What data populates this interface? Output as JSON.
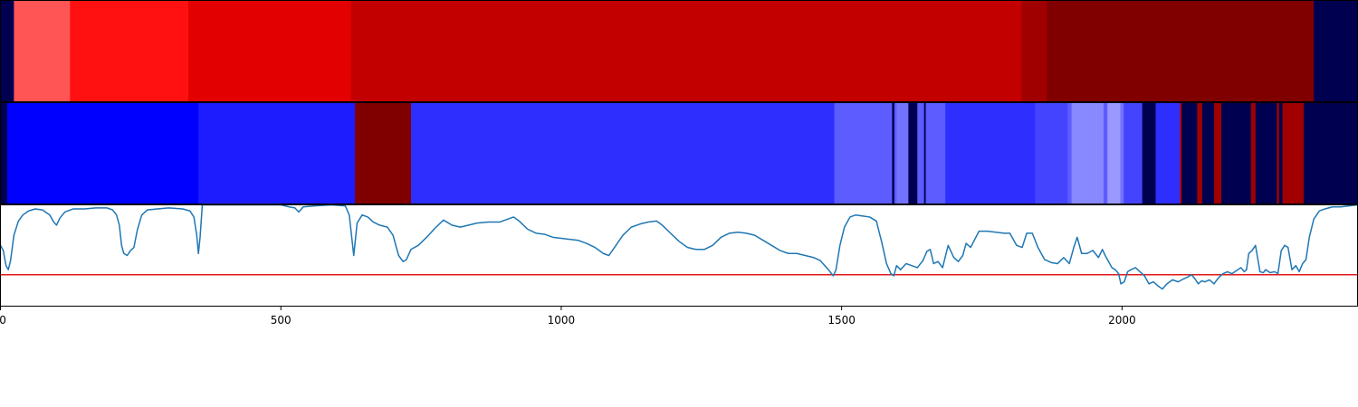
{
  "chart_data": {
    "type": "heatmap",
    "title": "",
    "xlabel": "",
    "ylabel": "",
    "xlim": [
      0,
      2420
    ],
    "x_ticks": [
      "0",
      "500",
      "1000",
      "1500",
      "2000"
    ],
    "x_tick_values": [
      0,
      500,
      1000,
      1500,
      2000
    ],
    "band_top": [
      {
        "start": 0,
        "end": 24,
        "color": "#000050"
      },
      {
        "start": 24,
        "end": 124,
        "color": "#ff5555"
      },
      {
        "start": 124,
        "end": 335,
        "color": "#ff1111"
      },
      {
        "start": 335,
        "end": 625,
        "color": "#e30000"
      },
      {
        "start": 625,
        "end": 1821,
        "color": "#c20000"
      },
      {
        "start": 1821,
        "end": 1866,
        "color": "#a00000"
      },
      {
        "start": 1866,
        "end": 2342,
        "color": "#800000"
      },
      {
        "start": 2342,
        "end": 2420,
        "color": "#000050"
      }
    ],
    "band_middle": [
      {
        "start": 0,
        "end": 12,
        "color": "#000050"
      },
      {
        "start": 12,
        "end": 353,
        "color": "#0000ff"
      },
      {
        "start": 353,
        "end": 632,
        "color": "#1c1cff"
      },
      {
        "start": 632,
        "end": 732,
        "color": "#800000"
      },
      {
        "start": 732,
        "end": 1487,
        "color": "#2e2eff"
      },
      {
        "start": 1487,
        "end": 1590,
        "color": "#5c5cff"
      },
      {
        "start": 1590,
        "end": 1594,
        "color": "#000050"
      },
      {
        "start": 1594,
        "end": 1598,
        "color": "#5c5cff"
      },
      {
        "start": 1598,
        "end": 1619,
        "color": "#7272ff"
      },
      {
        "start": 1619,
        "end": 1635,
        "color": "#000050"
      },
      {
        "start": 1635,
        "end": 1647,
        "color": "#5c5cff"
      },
      {
        "start": 1647,
        "end": 1650,
        "color": "#000050"
      },
      {
        "start": 1650,
        "end": 1685,
        "color": "#5c5cff"
      },
      {
        "start": 1685,
        "end": 1845,
        "color": "#2e2eff"
      },
      {
        "start": 1845,
        "end": 1903,
        "color": "#4444ff"
      },
      {
        "start": 1903,
        "end": 1910,
        "color": "#5c5cff"
      },
      {
        "start": 1910,
        "end": 1967,
        "color": "#8888ff"
      },
      {
        "start": 1967,
        "end": 1974,
        "color": "#5c5cff"
      },
      {
        "start": 1974,
        "end": 1997,
        "color": "#9999ff"
      },
      {
        "start": 1997,
        "end": 2003,
        "color": "#7272ff"
      },
      {
        "start": 2003,
        "end": 2036,
        "color": "#4444ff"
      },
      {
        "start": 2036,
        "end": 2060,
        "color": "#000050"
      },
      {
        "start": 2060,
        "end": 2103,
        "color": "#2e2eff"
      },
      {
        "start": 2103,
        "end": 2106,
        "color": "#c00000"
      },
      {
        "start": 2106,
        "end": 2134,
        "color": "#000050"
      },
      {
        "start": 2134,
        "end": 2143,
        "color": "#a00000"
      },
      {
        "start": 2143,
        "end": 2164,
        "color": "#000050"
      },
      {
        "start": 2164,
        "end": 2177,
        "color": "#a00000"
      },
      {
        "start": 2177,
        "end": 2230,
        "color": "#000050"
      },
      {
        "start": 2230,
        "end": 2238,
        "color": "#a00000"
      },
      {
        "start": 2238,
        "end": 2276,
        "color": "#000050"
      },
      {
        "start": 2276,
        "end": 2280,
        "color": "#a00000"
      },
      {
        "start": 2280,
        "end": 2286,
        "color": "#000050"
      },
      {
        "start": 2286,
        "end": 2324,
        "color": "#a00000"
      },
      {
        "start": 2324,
        "end": 2420,
        "color": "#000050"
      }
    ],
    "line_ylim": [
      0,
      1
    ],
    "threshold": 0.31,
    "threshold_color": "#e31a1c",
    "line_color": "#1f77b4",
    "series": [
      {
        "points": [
          [
            0,
            0.6
          ],
          [
            5,
            0.55
          ],
          [
            10,
            0.4
          ],
          [
            14,
            0.36
          ],
          [
            18,
            0.45
          ],
          [
            24,
            0.7
          ],
          [
            32,
            0.84
          ],
          [
            40,
            0.9
          ],
          [
            50,
            0.94
          ],
          [
            62,
            0.96
          ],
          [
            75,
            0.95
          ],
          [
            88,
            0.9
          ],
          [
            95,
            0.83
          ],
          [
            100,
            0.8
          ],
          [
            106,
            0.87
          ],
          [
            115,
            0.93
          ],
          [
            130,
            0.96
          ],
          [
            150,
            0.96
          ],
          [
            170,
            0.97
          ],
          [
            190,
            0.97
          ],
          [
            200,
            0.95
          ],
          [
            207,
            0.9
          ],
          [
            212,
            0.8
          ],
          [
            216,
            0.6
          ],
          [
            220,
            0.52
          ],
          [
            226,
            0.5
          ],
          [
            232,
            0.55
          ],
          [
            238,
            0.58
          ],
          [
            244,
            0.75
          ],
          [
            252,
            0.9
          ],
          [
            262,
            0.95
          ],
          [
            280,
            0.96
          ],
          [
            300,
            0.97
          ],
          [
            325,
            0.96
          ],
          [
            338,
            0.94
          ],
          [
            345,
            0.88
          ],
          [
            350,
            0.7
          ],
          [
            353,
            0.52
          ],
          [
            356,
            0.68
          ],
          [
            360,
            1.0
          ],
          [
            400,
            1.0
          ],
          [
            430,
            1.0
          ],
          [
            470,
            1.0
          ],
          [
            500,
            1.0
          ],
          [
            515,
            0.98
          ],
          [
            525,
            0.97
          ],
          [
            532,
            0.93
          ],
          [
            540,
            0.98
          ],
          [
            560,
            0.99
          ],
          [
            590,
            1.0
          ],
          [
            615,
            0.99
          ],
          [
            622,
            0.9
          ],
          [
            626,
            0.7
          ],
          [
            630,
            0.5
          ],
          [
            636,
            0.82
          ],
          [
            645,
            0.9
          ],
          [
            655,
            0.88
          ],
          [
            665,
            0.83
          ],
          [
            676,
            0.8
          ],
          [
            690,
            0.78
          ],
          [
            700,
            0.7
          ],
          [
            710,
            0.5
          ],
          [
            718,
            0.44
          ],
          [
            724,
            0.46
          ],
          [
            732,
            0.56
          ],
          [
            745,
            0.6
          ],
          [
            760,
            0.68
          ],
          [
            775,
            0.77
          ],
          [
            790,
            0.85
          ],
          [
            805,
            0.8
          ],
          [
            820,
            0.78
          ],
          [
            835,
            0.8
          ],
          [
            850,
            0.82
          ],
          [
            870,
            0.83
          ],
          [
            890,
            0.83
          ],
          [
            905,
            0.86
          ],
          [
            915,
            0.88
          ],
          [
            925,
            0.84
          ],
          [
            940,
            0.76
          ],
          [
            955,
            0.72
          ],
          [
            970,
            0.71
          ],
          [
            985,
            0.68
          ],
          [
            1000,
            0.67
          ],
          [
            1015,
            0.66
          ],
          [
            1030,
            0.65
          ],
          [
            1045,
            0.62
          ],
          [
            1060,
            0.58
          ],
          [
            1075,
            0.52
          ],
          [
            1085,
            0.5
          ],
          [
            1095,
            0.58
          ],
          [
            1110,
            0.7
          ],
          [
            1125,
            0.78
          ],
          [
            1140,
            0.81
          ],
          [
            1155,
            0.83
          ],
          [
            1170,
            0.84
          ],
          [
            1180,
            0.8
          ],
          [
            1195,
            0.72
          ],
          [
            1210,
            0.64
          ],
          [
            1225,
            0.58
          ],
          [
            1240,
            0.56
          ],
          [
            1255,
            0.56
          ],
          [
            1270,
            0.6
          ],
          [
            1285,
            0.68
          ],
          [
            1300,
            0.72
          ],
          [
            1315,
            0.73
          ],
          [
            1330,
            0.72
          ],
          [
            1345,
            0.7
          ],
          [
            1360,
            0.65
          ],
          [
            1375,
            0.6
          ],
          [
            1390,
            0.55
          ],
          [
            1405,
            0.52
          ],
          [
            1420,
            0.52
          ],
          [
            1435,
            0.5
          ],
          [
            1450,
            0.48
          ],
          [
            1462,
            0.45
          ],
          [
            1470,
            0.4
          ],
          [
            1478,
            0.35
          ],
          [
            1485,
            0.3
          ],
          [
            1490,
            0.36
          ],
          [
            1497,
            0.6
          ],
          [
            1505,
            0.78
          ],
          [
            1515,
            0.88
          ],
          [
            1525,
            0.9
          ],
          [
            1538,
            0.89
          ],
          [
            1550,
            0.88
          ],
          [
            1562,
            0.84
          ],
          [
            1572,
            0.62
          ],
          [
            1580,
            0.42
          ],
          [
            1588,
            0.32
          ],
          [
            1593,
            0.3
          ],
          [
            1598,
            0.4
          ],
          [
            1605,
            0.36
          ],
          [
            1615,
            0.42
          ],
          [
            1625,
            0.4
          ],
          [
            1635,
            0.38
          ],
          [
            1645,
            0.45
          ],
          [
            1652,
            0.54
          ],
          [
            1658,
            0.56
          ],
          [
            1664,
            0.42
          ],
          [
            1672,
            0.44
          ],
          [
            1680,
            0.38
          ],
          [
            1690,
            0.6
          ],
          [
            1700,
            0.48
          ],
          [
            1708,
            0.44
          ],
          [
            1716,
            0.5
          ],
          [
            1722,
            0.62
          ],
          [
            1730,
            0.58
          ],
          [
            1745,
            0.74
          ],
          [
            1760,
            0.74
          ],
          [
            1775,
            0.73
          ],
          [
            1790,
            0.72
          ],
          [
            1800,
            0.72
          ],
          [
            1812,
            0.6
          ],
          [
            1822,
            0.58
          ],
          [
            1830,
            0.72
          ],
          [
            1840,
            0.72
          ],
          [
            1850,
            0.58
          ],
          [
            1862,
            0.46
          ],
          [
            1874,
            0.43
          ],
          [
            1885,
            0.42
          ],
          [
            1896,
            0.48
          ],
          [
            1906,
            0.42
          ],
          [
            1914,
            0.58
          ],
          [
            1920,
            0.68
          ],
          [
            1928,
            0.52
          ],
          [
            1938,
            0.52
          ],
          [
            1948,
            0.55
          ],
          [
            1958,
            0.48
          ],
          [
            1965,
            0.56
          ],
          [
            1970,
            0.5
          ],
          [
            1976,
            0.44
          ],
          [
            1982,
            0.38
          ],
          [
            1988,
            0.36
          ],
          [
            1994,
            0.32
          ],
          [
            1998,
            0.22
          ],
          [
            2004,
            0.24
          ],
          [
            2010,
            0.34
          ],
          [
            2016,
            0.36
          ],
          [
            2024,
            0.38
          ],
          [
            2032,
            0.34
          ],
          [
            2040,
            0.3
          ],
          [
            2048,
            0.22
          ],
          [
            2056,
            0.24
          ],
          [
            2064,
            0.2
          ],
          [
            2072,
            0.17
          ],
          [
            2080,
            0.22
          ],
          [
            2090,
            0.26
          ],
          [
            2100,
            0.24
          ],
          [
            2110,
            0.27
          ],
          [
            2118,
            0.29
          ],
          [
            2124,
            0.31
          ],
          [
            2130,
            0.27
          ],
          [
            2136,
            0.22
          ],
          [
            2142,
            0.25
          ],
          [
            2148,
            0.24
          ],
          [
            2156,
            0.26
          ],
          [
            2164,
            0.22
          ],
          [
            2172,
            0.28
          ],
          [
            2180,
            0.32
          ],
          [
            2188,
            0.34
          ],
          [
            2196,
            0.32
          ],
          [
            2204,
            0.35
          ],
          [
            2212,
            0.38
          ],
          [
            2218,
            0.34
          ],
          [
            2222,
            0.36
          ],
          [
            2226,
            0.52
          ],
          [
            2232,
            0.55
          ],
          [
            2238,
            0.6
          ],
          [
            2246,
            0.34
          ],
          [
            2252,
            0.33
          ],
          [
            2256,
            0.36
          ],
          [
            2264,
            0.33
          ],
          [
            2272,
            0.34
          ],
          [
            2278,
            0.32
          ],
          [
            2284,
            0.55
          ],
          [
            2290,
            0.6
          ],
          [
            2296,
            0.58
          ],
          [
            2303,
            0.36
          ],
          [
            2310,
            0.4
          ],
          [
            2316,
            0.34
          ],
          [
            2322,
            0.42
          ],
          [
            2328,
            0.46
          ],
          [
            2334,
            0.68
          ],
          [
            2342,
            0.86
          ],
          [
            2352,
            0.94
          ],
          [
            2362,
            0.96
          ],
          [
            2375,
            0.98
          ],
          [
            2390,
            0.98
          ],
          [
            2405,
            0.99
          ],
          [
            2420,
            1.0
          ]
        ]
      }
    ]
  }
}
